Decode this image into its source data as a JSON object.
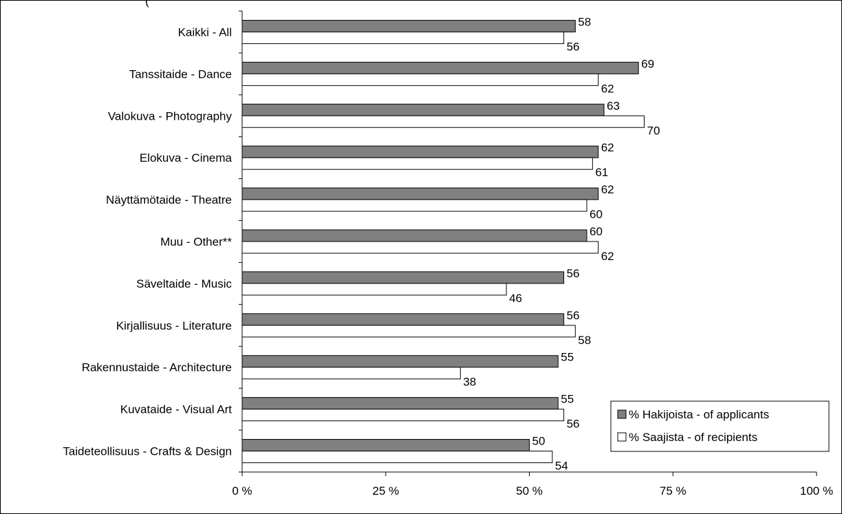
{
  "chart_data": {
    "type": "bar",
    "orientation": "horizontal",
    "title_fragment": "(",
    "categories": [
      "Kaikki - All",
      "Tanssitaide - Dance",
      "Valokuva - Photography",
      "Elokuva - Cinema",
      "Näyttämötaide - Theatre",
      "Muu - Other**",
      "Säveltaide - Music",
      "Kirjallisuus - Literature",
      "Rakennustaide - Architecture",
      "Kuvataide - Visual Art",
      "Taideteollisuus - Crafts & Design"
    ],
    "series": [
      {
        "name": "% Hakijoista - of applicants",
        "color": "#808080",
        "values": [
          58,
          69,
          63,
          62,
          62,
          60,
          56,
          56,
          55,
          55,
          50
        ]
      },
      {
        "name": "% Saajista - of recipients",
        "color": "#ffffff",
        "values": [
          56,
          62,
          70,
          61,
          60,
          62,
          46,
          58,
          38,
          56,
          54
        ]
      }
    ],
    "x_ticks": [
      0,
      25,
      50,
      75,
      100
    ],
    "x_tick_labels": [
      "0 %",
      "25 %",
      "50 %",
      "75 %",
      "100 %"
    ],
    "xlim": [
      0,
      100
    ],
    "grid": false,
    "legend_position": "bottom-right"
  }
}
